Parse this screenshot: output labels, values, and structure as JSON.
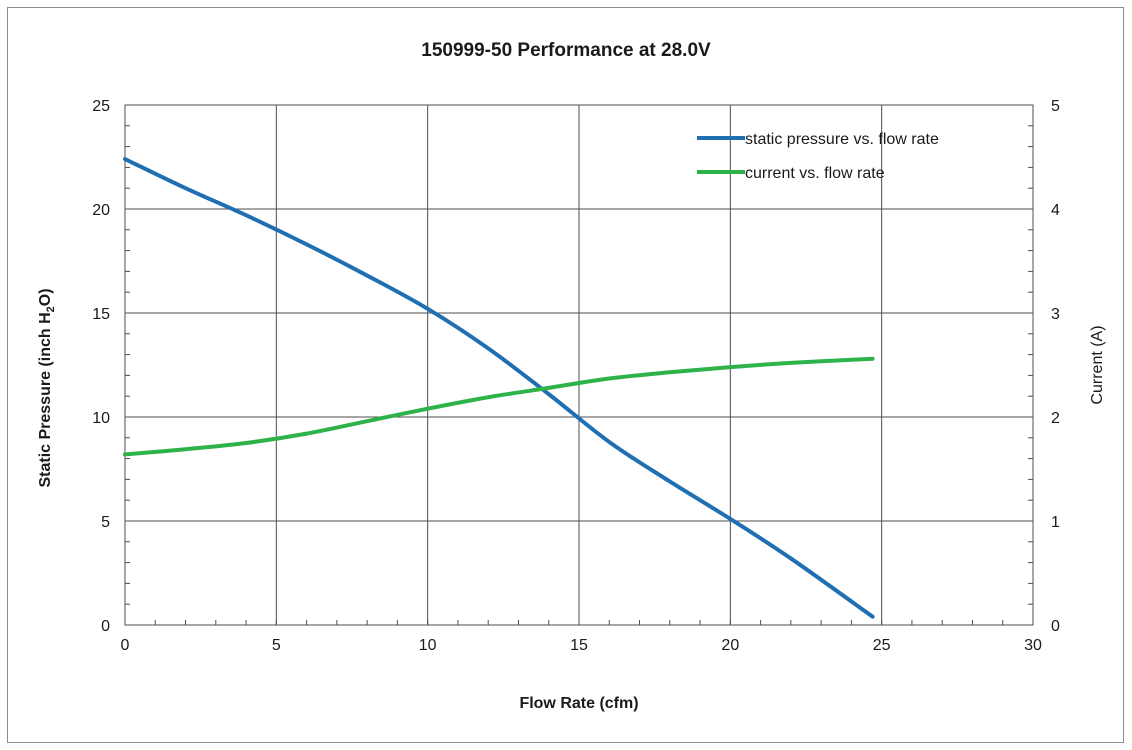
{
  "chart_data": {
    "type": "line",
    "title": "150999-50 Performance at 28.0V",
    "xlabel": "Flow Rate (cfm)",
    "ylabel": "Static Pressure (inch H2O)",
    "ylabel_parts": {
      "pre": "Static Pressure (inch H",
      "sub": "2",
      "post": "O)"
    },
    "y2label": "Current (A)",
    "xlim": [
      0,
      30
    ],
    "ylim": [
      0,
      25
    ],
    "y2lim": [
      0,
      5
    ],
    "x_ticks": [
      0,
      5,
      10,
      15,
      20,
      25,
      30
    ],
    "y_ticks": [
      0,
      5,
      10,
      15,
      20,
      25
    ],
    "y2_ticks": [
      0,
      1,
      2,
      3,
      4,
      5
    ],
    "grid": true,
    "legend_position": "top-right",
    "series": [
      {
        "name": "static pressure vs. flow rate",
        "axis": "left",
        "color": "#1f6fb2",
        "x": [
          0,
          2,
          4,
          6,
          8,
          10,
          12,
          14,
          16,
          18,
          20,
          22,
          24.7
        ],
        "y": [
          22.4,
          21.0,
          19.7,
          18.3,
          16.8,
          15.2,
          13.3,
          11.1,
          8.8,
          6.9,
          5.1,
          3.2,
          0.4
        ]
      },
      {
        "name": "current vs. flow rate",
        "axis": "right",
        "color": "#2db34a",
        "x": [
          0,
          2,
          4,
          6,
          8,
          10,
          12,
          14,
          16,
          18,
          20,
          22,
          24.7
        ],
        "y": [
          1.64,
          1.69,
          1.75,
          1.84,
          1.96,
          2.08,
          2.19,
          2.28,
          2.37,
          2.43,
          2.48,
          2.52,
          2.56
        ]
      }
    ]
  }
}
